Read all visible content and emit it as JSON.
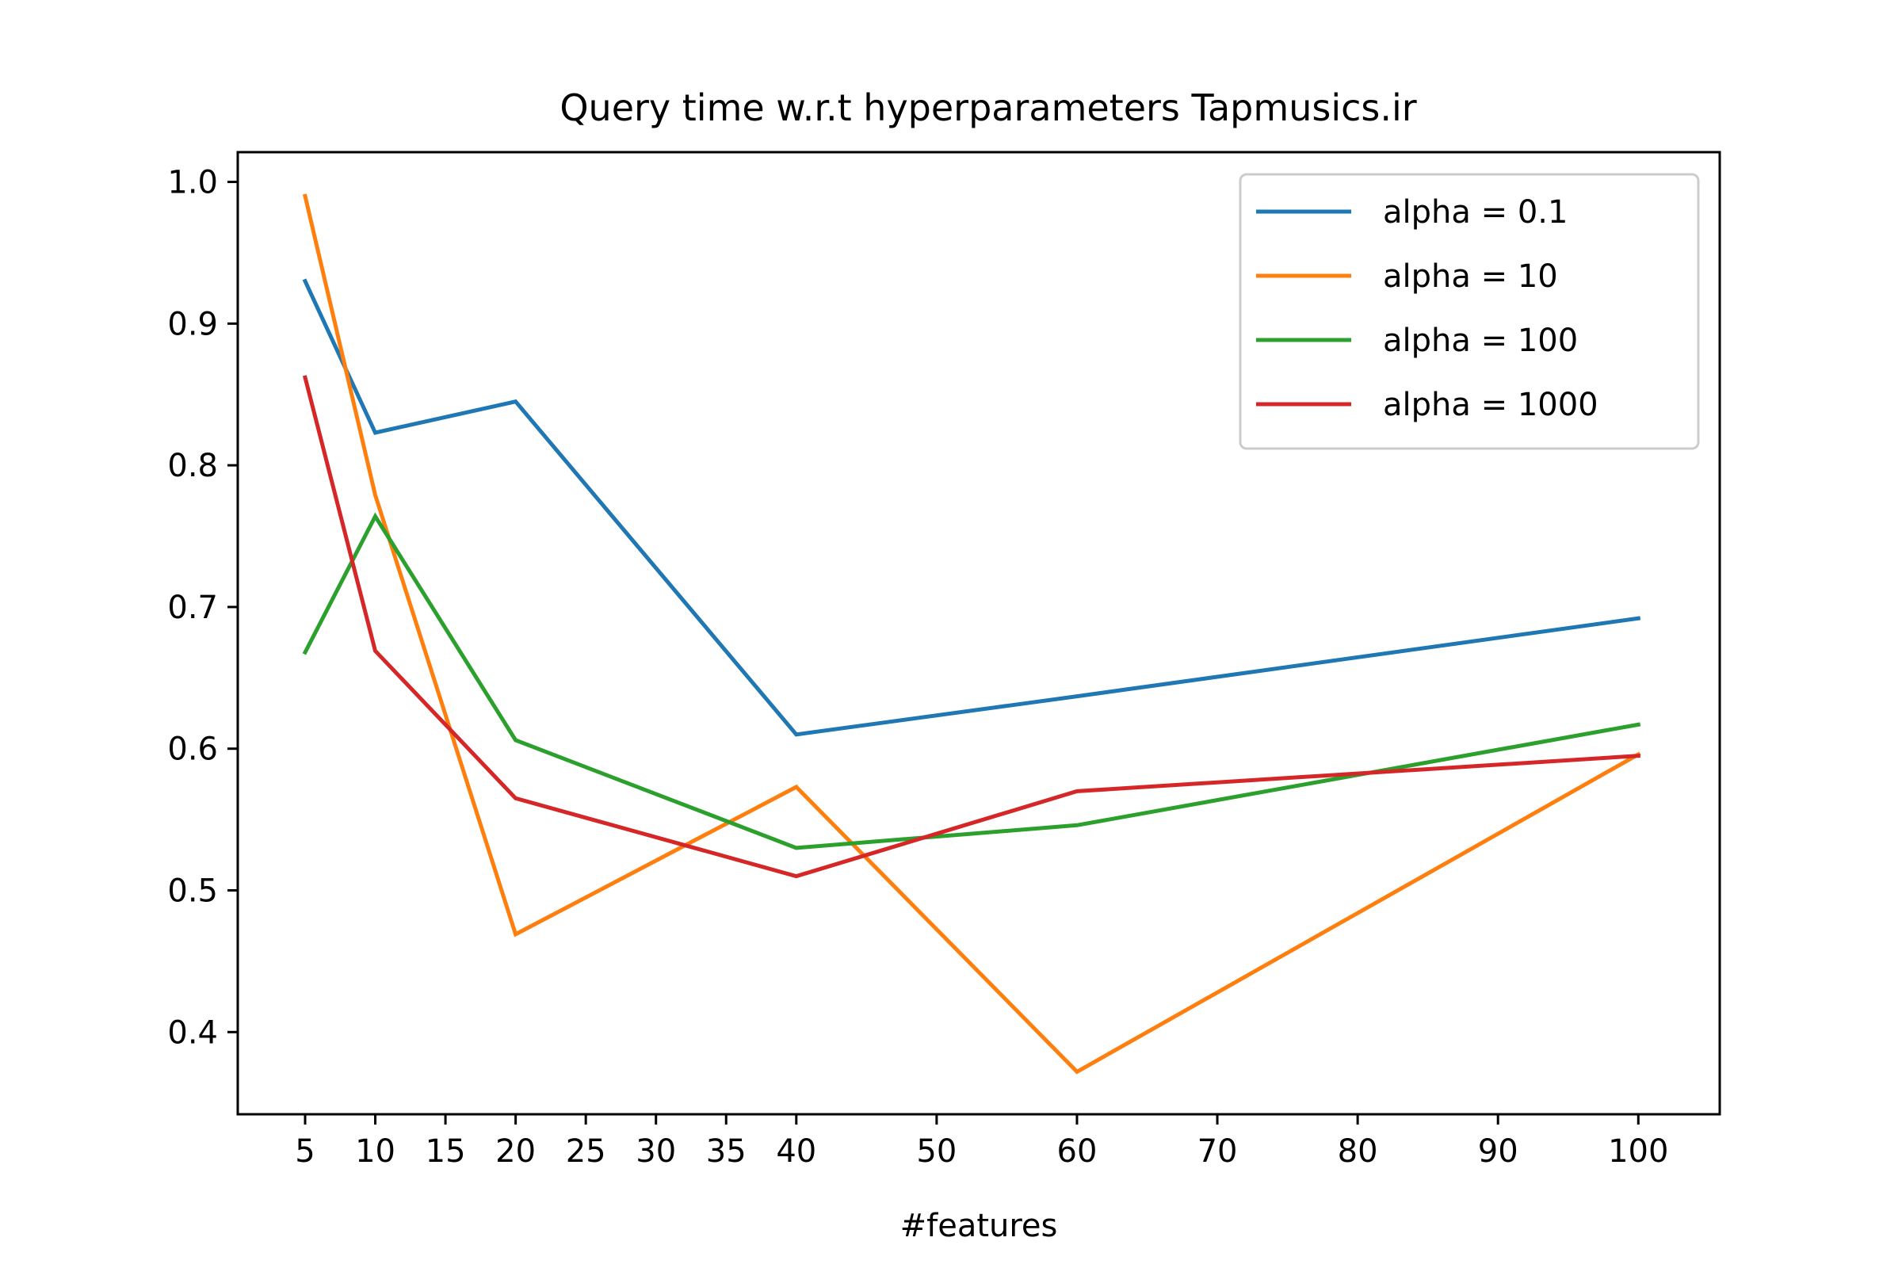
{
  "chart_data": {
    "type": "line",
    "title": "Query time w.r.t hyperparameters Tapmusics.ir",
    "xlabel": "#features",
    "ylabel": "",
    "xlim": [
      0.2,
      105.8
    ],
    "ylim": [
      0.342,
      1.021
    ],
    "x_ticks": [
      5,
      10,
      15,
      20,
      25,
      30,
      35,
      40,
      50,
      60,
      70,
      80,
      90,
      100
    ],
    "y_ticks": [
      0.4,
      0.5,
      0.6,
      0.7,
      0.8,
      0.9,
      1.0
    ],
    "y_tick_labels": [
      "0.4",
      "0.5",
      "0.6",
      "0.7",
      "0.8",
      "0.9",
      "1.0"
    ],
    "grid": false,
    "legend_position": "top-right",
    "x": [
      5,
      10,
      20,
      40,
      60,
      100
    ],
    "series": [
      {
        "name": "alpha = 0.1",
        "color": "#1f77b4",
        "values": [
          0.93,
          0.823,
          0.845,
          0.61,
          0.637,
          0.692
        ]
      },
      {
        "name": "alpha = 10",
        "color": "#ff7f0e",
        "values": [
          0.99,
          0.779,
          0.469,
          0.573,
          0.372,
          0.596
        ]
      },
      {
        "name": "alpha = 100",
        "color": "#2ca02c",
        "values": [
          0.668,
          0.764,
          0.606,
          0.53,
          0.546,
          0.617
        ]
      },
      {
        "name": "alpha = 1000",
        "color": "#d62728",
        "values": [
          0.862,
          0.669,
          0.565,
          0.51,
          0.57,
          0.595
        ]
      }
    ]
  }
}
